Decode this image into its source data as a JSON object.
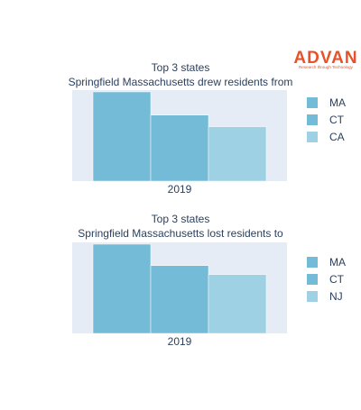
{
  "logo": {
    "name": "ADVAN",
    "tagline": "Research through Technology"
  },
  "colors": {
    "plot_bg": "#e5ecf6",
    "bar1": "#74bbd7",
    "bar2": "#74bbd7",
    "bar3": "#9dd1e3",
    "logo": "#e8522b",
    "text": "#2a3f5f"
  },
  "chart_data": [
    {
      "type": "bar",
      "title": "Top 3 states",
      "subtitle": "Springfield Massachusetts drew residents from",
      "categories": [
        "2019"
      ],
      "series": [
        {
          "name": "MA",
          "values": [
            100
          ]
        },
        {
          "name": "CT",
          "values": [
            74
          ]
        },
        {
          "name": "CA",
          "values": [
            61
          ]
        }
      ],
      "ylim": [
        0,
        102
      ],
      "legend_position": "right",
      "grid": false
    },
    {
      "type": "bar",
      "title": "Top 3 states",
      "subtitle": "Springfield Massachusetts lost residents to",
      "categories": [
        "2019"
      ],
      "series": [
        {
          "name": "MA",
          "values": [
            100
          ]
        },
        {
          "name": "CT",
          "values": [
            76
          ]
        },
        {
          "name": "NJ",
          "values": [
            66
          ]
        }
      ],
      "ylim": [
        0,
        102
      ],
      "legend_position": "right",
      "grid": false
    }
  ]
}
